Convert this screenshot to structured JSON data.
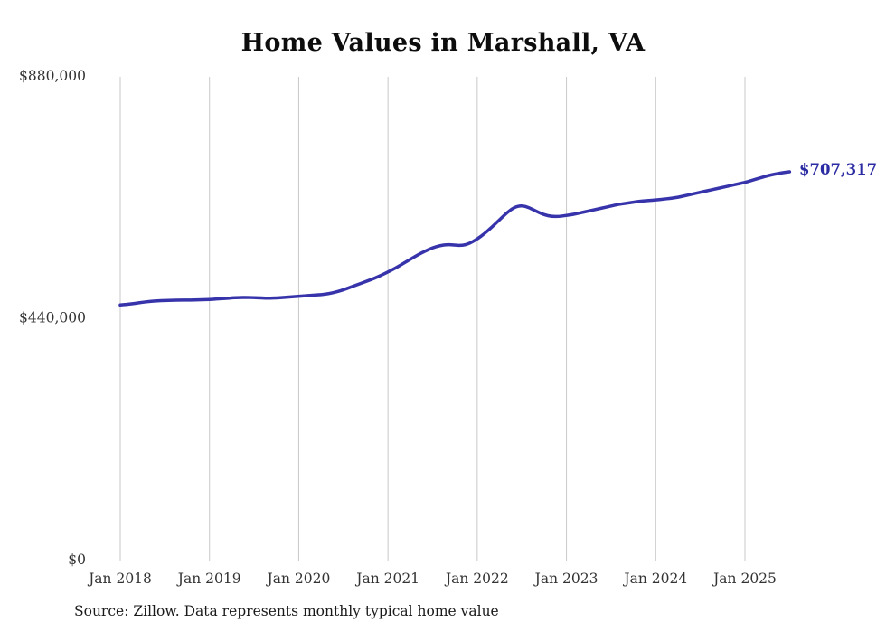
{
  "source_note": "Source: Zillow. Data represents monthly typical home value",
  "colors": {
    "line": "#3633ab",
    "end_label": "#2b2ba3",
    "grid": "#c9c9c9",
    "axis_text": "#333333",
    "title_text": "#0d0d0d"
  },
  "chart_data": {
    "type": "line",
    "title": "Home Values in Marshall, VA",
    "xlabel": "",
    "ylabel": "",
    "x_unit": "month",
    "x_start": "Jan 2018",
    "x_end": "Jul 2025",
    "x_tick_labels": [
      "Jan 2018",
      "Jan 2019",
      "Jan 2020",
      "Jan 2021",
      "Jan 2022",
      "Jan 2023",
      "Jan 2024",
      "Jan 2025"
    ],
    "y_ticks": [
      {
        "value": 0,
        "label": "$0"
      },
      {
        "value": 440000,
        "label": "$440,000"
      },
      {
        "value": 880000,
        "label": "$880,000"
      }
    ],
    "ylim": [
      0,
      880000
    ],
    "grid": "vertical-only",
    "legend": "none",
    "final_value": 707317,
    "final_value_label": "$707,317",
    "series": [
      {
        "name": "Typical home value",
        "values": [
          465000,
          466200,
          468000,
          470000,
          471500,
          472500,
          473200,
          473600,
          473800,
          473900,
          474000,
          474500,
          475000,
          475800,
          476800,
          477800,
          478500,
          478800,
          478300,
          477600,
          477300,
          477800,
          478800,
          479800,
          480800,
          481800,
          482800,
          483800,
          485500,
          488500,
          492500,
          497500,
          502500,
          507500,
          512500,
          518500,
          525000,
          532000,
          540000,
          548000,
          556000,
          563000,
          569000,
          573000,
          575000,
          574000,
          573000,
          577000,
          585000,
          595000,
          607000,
          620000,
          633000,
          643000,
          646000,
          642000,
          635000,
          629000,
          626000,
          626000,
          628000,
          630000,
          633000,
          636000,
          639000,
          642000,
          645000,
          648000,
          650000,
          652000,
          654000,
          655000,
          656000,
          657500,
          659000,
          661000,
          664000,
          667000,
          670000,
          673000,
          676000,
          679000,
          682000,
          685000,
          688000,
          692000,
          696000,
          700000,
          703000,
          705500,
          707317
        ]
      }
    ]
  }
}
